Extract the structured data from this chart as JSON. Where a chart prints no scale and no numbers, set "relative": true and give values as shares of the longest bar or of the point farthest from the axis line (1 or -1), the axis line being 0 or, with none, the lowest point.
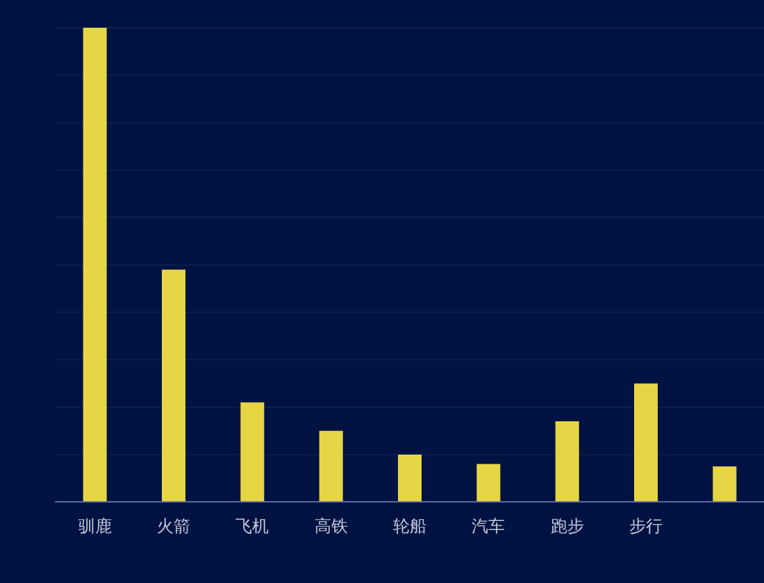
{
  "chart_data": {
    "type": "bar",
    "relative": true,
    "grid": "y",
    "categories": [
      "驯鹿",
      "火箭",
      "飞机",
      "高铁",
      "轮船",
      "汽车",
      "跑步",
      "步行",
      null
    ],
    "series": [
      {
        "color": "#e6d545",
        "values": [
          1,
          0.49,
          0.21,
          0.15,
          0.1,
          0.08,
          0.17,
          0.25,
          0.075
        ]
      }
    ]
  }
}
